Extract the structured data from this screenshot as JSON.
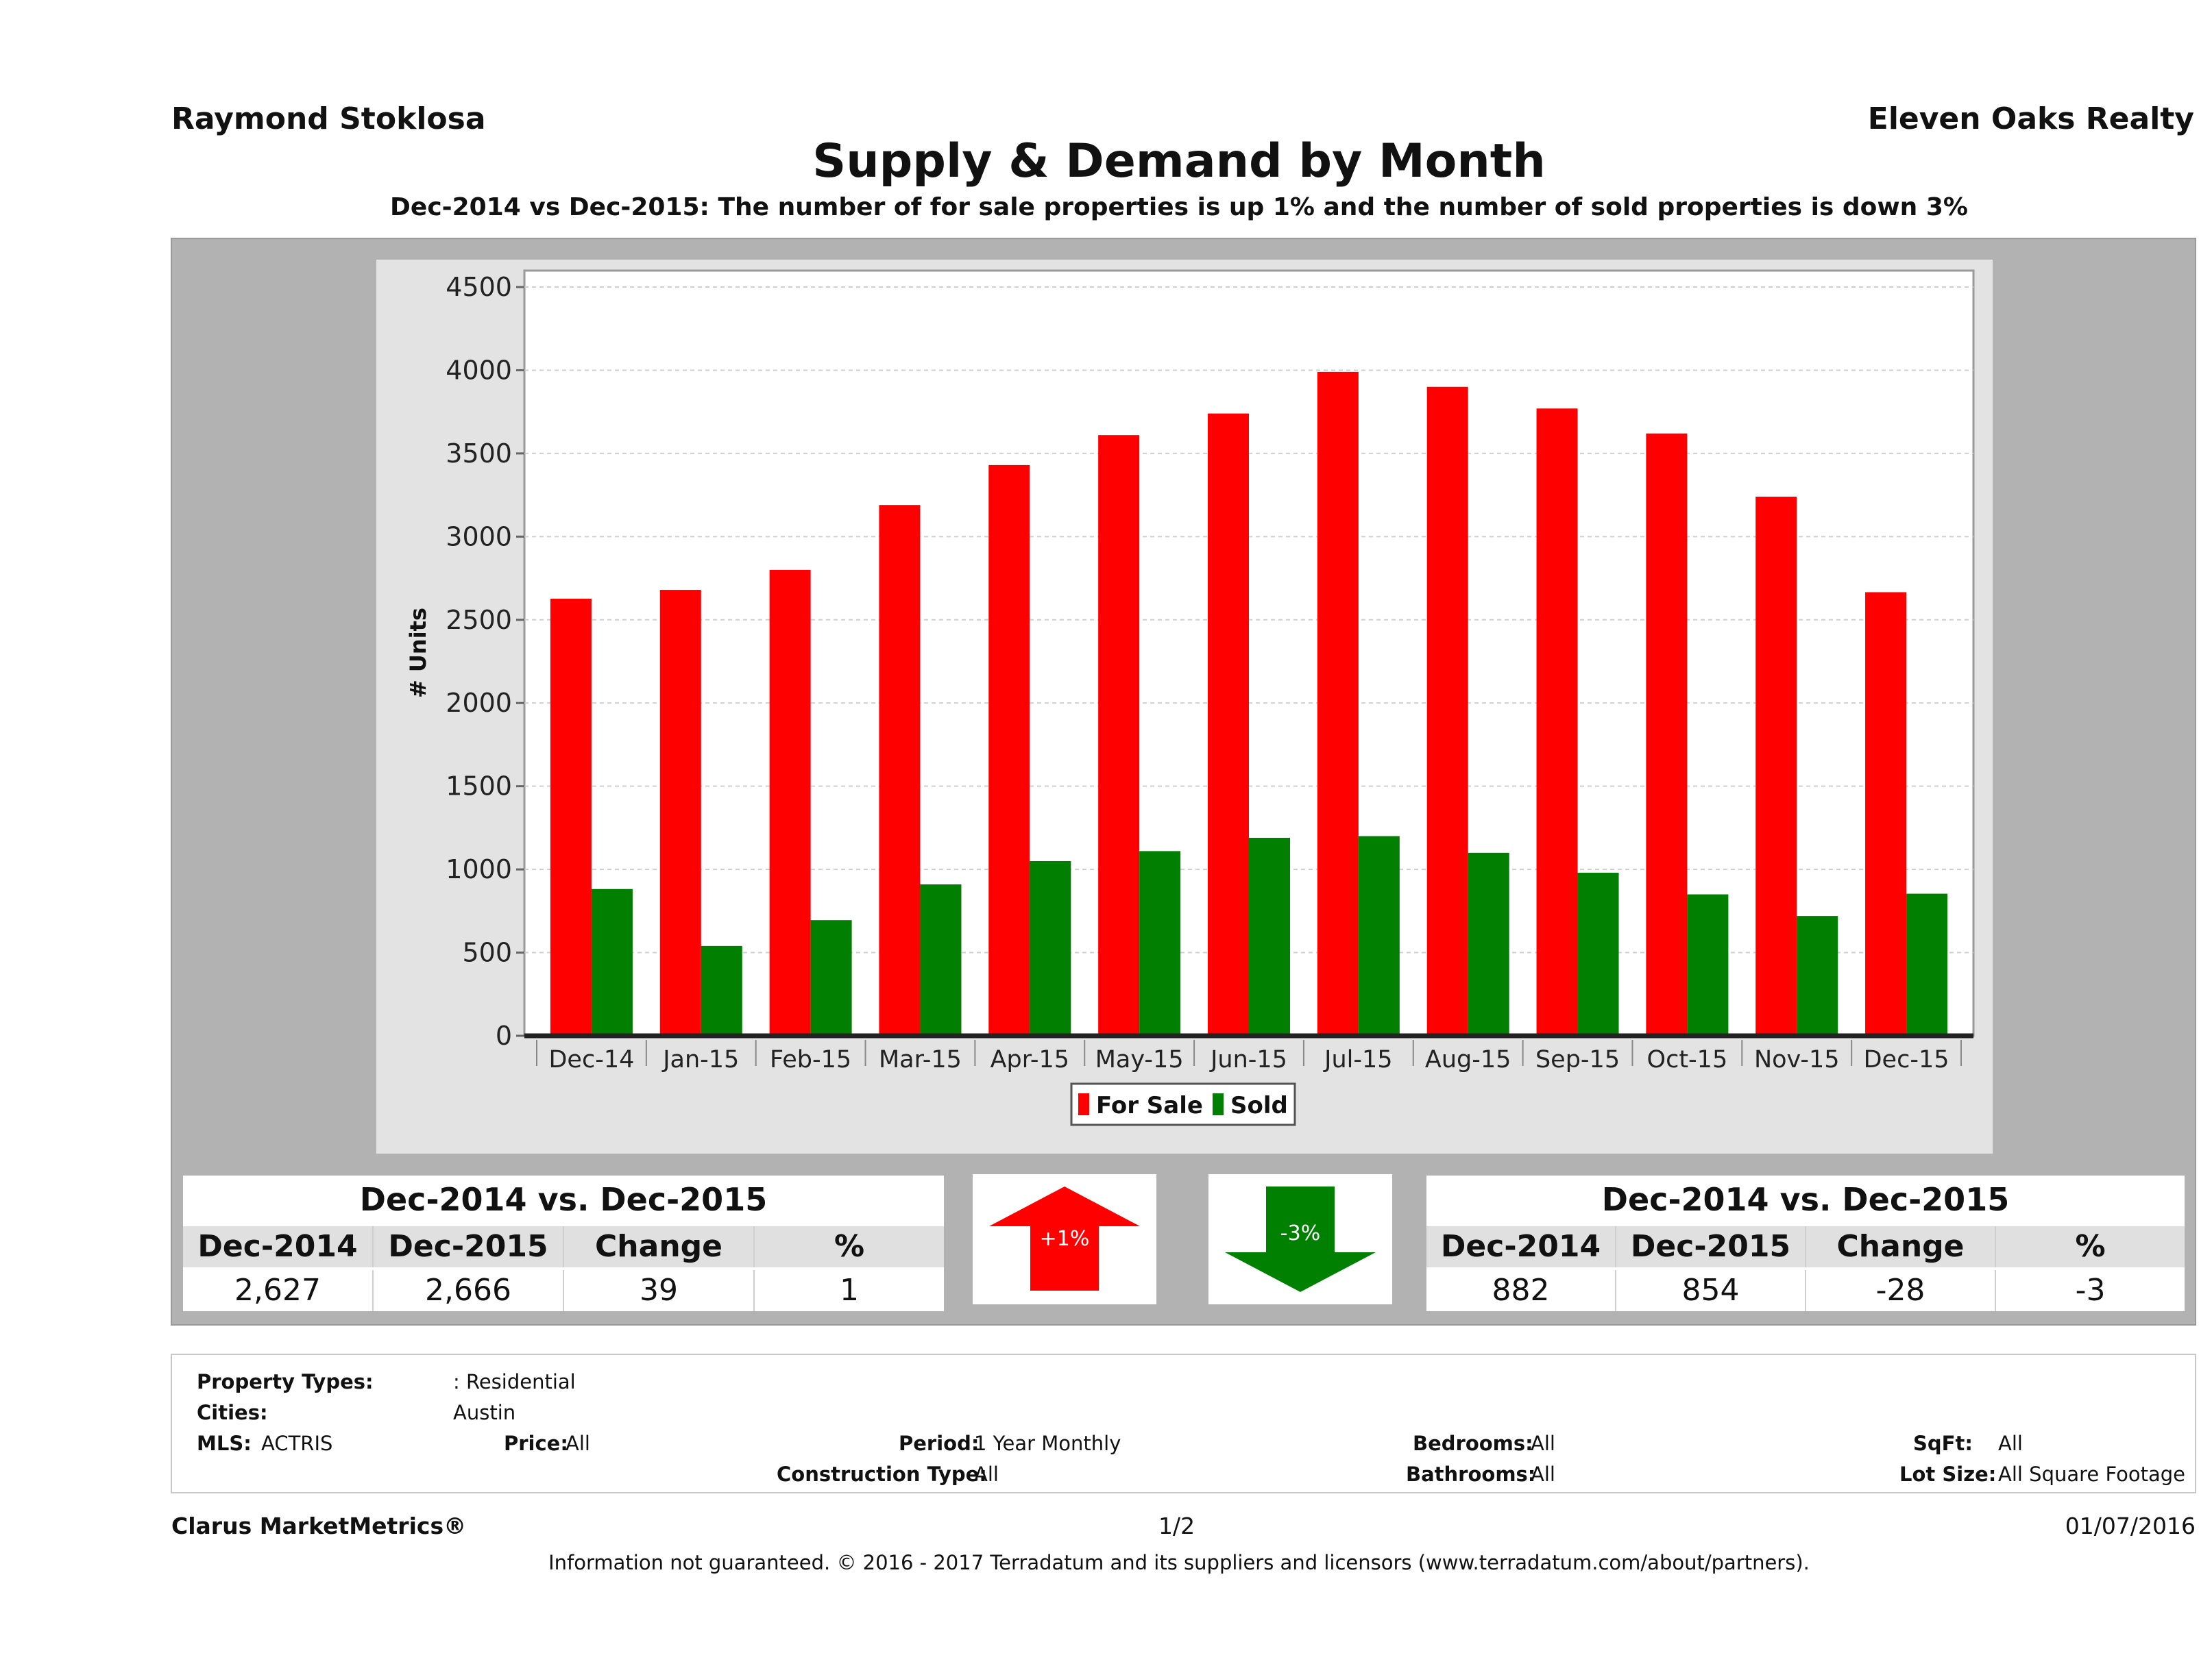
{
  "header": {
    "agent": "Raymond Stoklosa",
    "company": "Eleven Oaks Realty",
    "title": "Supply & Demand by Month",
    "subtitle": "Dec-2014 vs Dec-2015: The number of for sale properties is up 1% and the number of sold properties is down 3%"
  },
  "colors": {
    "for_sale": "#ff0000",
    "sold": "#007f00",
    "panel_gray": "#b2b2b2",
    "plot_bg": "#ffffff"
  },
  "chart_data": {
    "type": "bar",
    "ylabel": "# Units",
    "xlabel": "",
    "ylim": [
      0,
      4500
    ],
    "yticks": [
      0,
      500,
      1000,
      1500,
      2000,
      2500,
      3000,
      3500,
      4000,
      4500
    ],
    "categories": [
      "Dec-14",
      "Jan-15",
      "Feb-15",
      "Mar-15",
      "Apr-15",
      "May-15",
      "Jun-15",
      "Jul-15",
      "Aug-15",
      "Sep-15",
      "Oct-15",
      "Nov-15",
      "Dec-15"
    ],
    "series": [
      {
        "name": "For Sale",
        "color": "#ff0000",
        "values": [
          2627,
          2680,
          2800,
          3190,
          3430,
          3610,
          3740,
          3990,
          3900,
          3770,
          3620,
          3240,
          2666
        ]
      },
      {
        "name": "Sold",
        "color": "#007f00",
        "values": [
          882,
          540,
          695,
          910,
          1050,
          1110,
          1190,
          1200,
          1100,
          980,
          850,
          720,
          854
        ]
      }
    ],
    "legend": "bottom-center",
    "grid": true
  },
  "for_sale_summary": {
    "title": "Dec-2014 vs. Dec-2015",
    "headers": [
      "Dec-2014",
      "Dec-2015",
      "Change",
      "%"
    ],
    "values": [
      "2,627",
      "2,666",
      "39",
      "1"
    ],
    "arrow_label": "+1%",
    "arrow_direction": "up",
    "arrow_color": "#ff0000"
  },
  "sold_summary": {
    "title": "Dec-2014 vs. Dec-2015",
    "headers": [
      "Dec-2014",
      "Dec-2015",
      "Change",
      "%"
    ],
    "values": [
      "882",
      "854",
      "-28",
      "-3"
    ],
    "arrow_label": "-3%",
    "arrow_direction": "down",
    "arrow_color": "#008000"
  },
  "filters": {
    "property_types_label": "Property Types:",
    "property_types_value": ": Residential",
    "cities_label": "Cities:",
    "cities_value": "Austin",
    "mls_label": "MLS:",
    "mls_value": "ACTRIS",
    "price_label": "Price:",
    "price_value": "All",
    "period_label": "Period:",
    "period_value": "1 Year Monthly",
    "bedrooms_label": "Bedrooms:",
    "bedrooms_value": "All",
    "sqft_label": "SqFt:",
    "sqft_value": "All",
    "construction_label": "Construction Type:",
    "construction_value": "All",
    "bathrooms_label": "Bathrooms:",
    "bathrooms_value": "All",
    "lotsize_label": "Lot Size:",
    "lotsize_value": "All Square Footage"
  },
  "footer": {
    "brand": "Clarus MarketMetrics®",
    "page": "1/2",
    "date": "01/07/2016",
    "disclaimer": "Information not guaranteed. © 2016 - 2017 Terradatum and its suppliers and licensors (www.terradatum.com/about/partners)."
  }
}
